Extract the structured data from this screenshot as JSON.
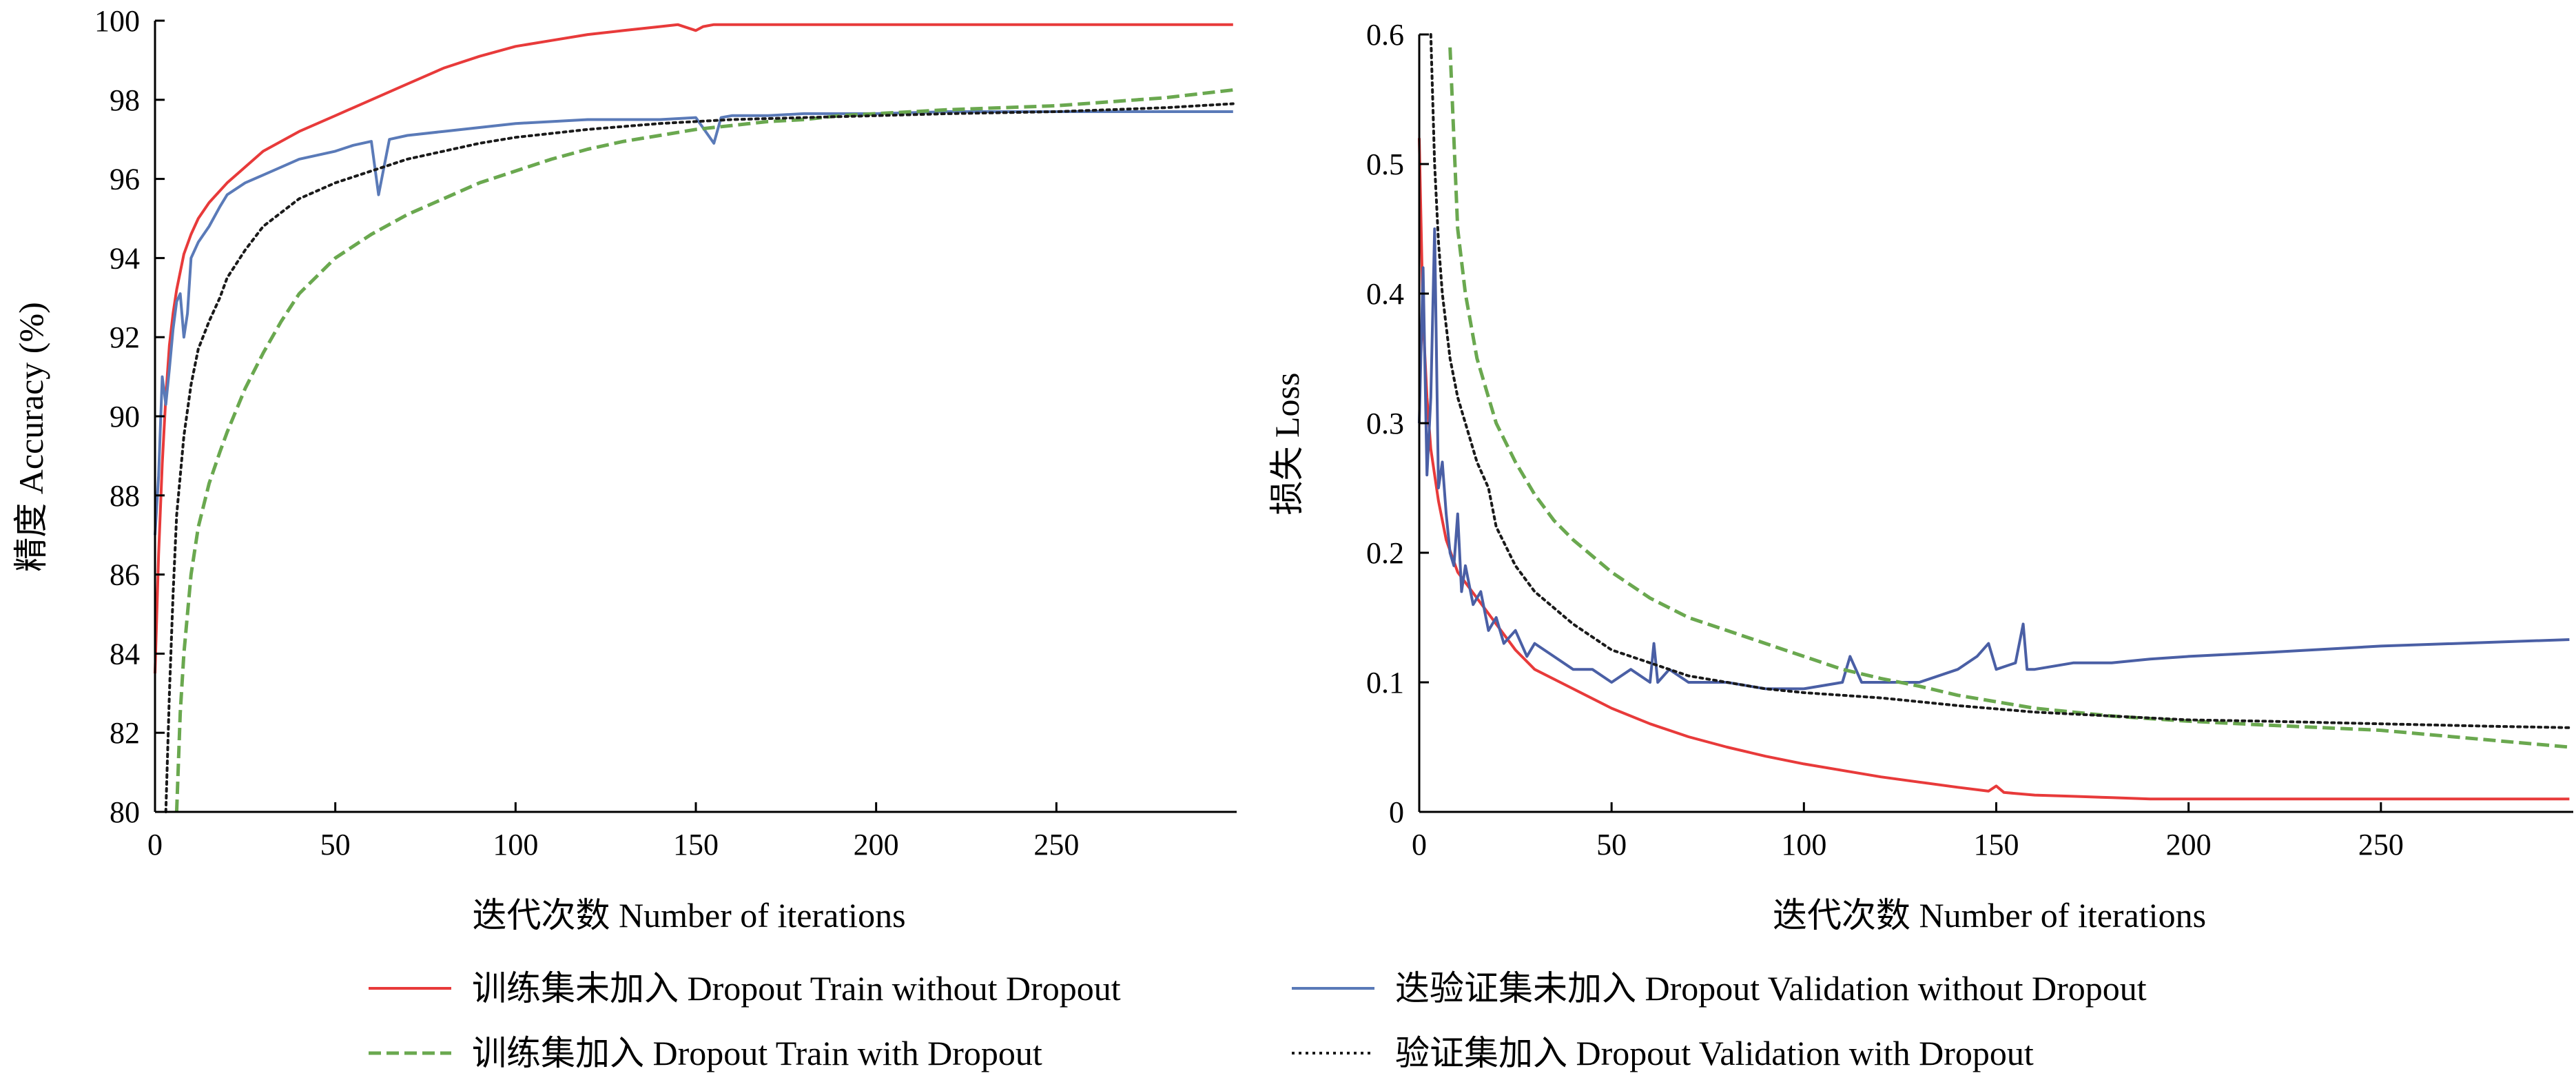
{
  "chart_data": [
    {
      "type": "line",
      "ylabel": "精度  Accuracy (%)",
      "xlabel": "迭代次数  Number of iterations",
      "xlim": [
        0,
        300
      ],
      "ylim": [
        80,
        100
      ],
      "xticks": [
        0,
        50,
        100,
        150,
        200,
        250
      ],
      "yticks": [
        80,
        82,
        84,
        86,
        88,
        90,
        92,
        94,
        96,
        98,
        100
      ],
      "grid": false,
      "series": [
        {
          "key": "train_no",
          "name": "训练集未加入  Dropout Train without Dropout",
          "color": "#e83a3a",
          "style": "solid",
          "x": [
            0,
            1,
            2,
            3,
            4,
            5,
            6,
            8,
            10,
            12,
            15,
            20,
            25,
            30,
            40,
            50,
            60,
            70,
            80,
            90,
            100,
            110,
            120,
            130,
            140,
            145,
            150,
            152,
            155,
            160,
            200,
            250,
            299
          ],
          "y": [
            83.5,
            86.5,
            88.8,
            90.5,
            91.8,
            92.6,
            93.2,
            94.1,
            94.6,
            95,
            95.4,
            95.9,
            96.3,
            96.7,
            97.2,
            97.6,
            98,
            98.4,
            98.8,
            99.1,
            99.35,
            99.5,
            99.65,
            99.75,
            99.85,
            99.9,
            99.75,
            99.85,
            99.9,
            99.9,
            99.9,
            99.9,
            99.9
          ]
        },
        {
          "key": "val_no",
          "name": "迭验证集未加入  Dropout Validation without Dropout",
          "color": "#5a7ab8",
          "style": "solid",
          "x": [
            0,
            1,
            2,
            3,
            4,
            5,
            6,
            7,
            8,
            9,
            10,
            12,
            15,
            18,
            20,
            25,
            30,
            35,
            40,
            45,
            50,
            55,
            60,
            62,
            65,
            70,
            80,
            90,
            100,
            110,
            120,
            130,
            140,
            150,
            155,
            157,
            160,
            170,
            180,
            200,
            220,
            250,
            299
          ],
          "y": [
            87,
            88.5,
            91,
            90.3,
            91.2,
            92.2,
            92.9,
            93.1,
            92,
            92.6,
            94,
            94.4,
            94.8,
            95.3,
            95.6,
            95.9,
            96.1,
            96.3,
            96.5,
            96.6,
            96.7,
            96.85,
            96.95,
            95.6,
            97,
            97.1,
            97.2,
            97.3,
            97.4,
            97.45,
            97.5,
            97.5,
            97.5,
            97.55,
            96.9,
            97.55,
            97.6,
            97.6,
            97.65,
            97.65,
            97.7,
            97.7,
            97.7
          ]
        },
        {
          "key": "train_do",
          "name": "训练集加入  Dropout Train with Dropout",
          "color": "#6aa84f",
          "style": "dashed",
          "x": [
            6,
            7,
            8,
            10,
            12,
            15,
            18,
            20,
            25,
            30,
            35,
            40,
            50,
            60,
            70,
            80,
            90,
            100,
            110,
            120,
            130,
            140,
            150,
            160,
            170,
            180,
            190,
            200,
            220,
            250,
            280,
            299
          ],
          "y": [
            80,
            82.5,
            84,
            86,
            87.2,
            88.3,
            89.1,
            89.6,
            90.7,
            91.6,
            92.4,
            93.1,
            94,
            94.6,
            95.1,
            95.5,
            95.9,
            96.2,
            96.5,
            96.75,
            96.95,
            97.1,
            97.25,
            97.35,
            97.45,
            97.5,
            97.6,
            97.65,
            97.75,
            97.85,
            98.05,
            98.25
          ]
        },
        {
          "key": "val_do",
          "name": "验证集加入  Dropout Validation with Dropout",
          "color": "#1a1a1a",
          "style": "dotted",
          "x": [
            3,
            4,
            5,
            6,
            8,
            10,
            12,
            15,
            18,
            20,
            25,
            30,
            40,
            50,
            60,
            70,
            80,
            90,
            100,
            120,
            140,
            160,
            180,
            200,
            220,
            250,
            280,
            299
          ],
          "y": [
            80,
            83,
            85.5,
            87.5,
            89.5,
            90.8,
            91.7,
            92.4,
            93,
            93.5,
            94.2,
            94.8,
            95.5,
            95.9,
            96.2,
            96.5,
            96.7,
            96.9,
            97.05,
            97.25,
            97.4,
            97.5,
            97.55,
            97.6,
            97.65,
            97.7,
            97.8,
            97.9
          ]
        }
      ]
    },
    {
      "type": "line",
      "ylabel": "损失  Loss",
      "xlabel": "迭代次数  Number of iterations",
      "xlim": [
        0,
        300
      ],
      "ylim": [
        0,
        0.6
      ],
      "xticks": [
        0,
        50,
        100,
        150,
        200,
        250
      ],
      "yticks": [
        0,
        0.1,
        0.2,
        0.3,
        0.4,
        0.5,
        0.6
      ],
      "ytick_labels": [
        "0",
        "0.1",
        "0.2",
        "0.3",
        "0.4",
        "0.5",
        "0.6"
      ],
      "grid": false,
      "series": [
        {
          "key": "train_no",
          "name": "训练集未加入  Dropout Train without Dropout",
          "color": "#e83a3a",
          "style": "solid",
          "x": [
            0,
            1,
            2,
            3,
            5,
            7,
            10,
            15,
            20,
            25,
            30,
            40,
            50,
            60,
            70,
            80,
            90,
            100,
            110,
            120,
            130,
            140,
            148,
            150,
            152,
            160,
            170,
            180,
            190,
            200,
            250,
            299
          ],
          "y": [
            0.52,
            0.38,
            0.32,
            0.28,
            0.24,
            0.21,
            0.185,
            0.165,
            0.145,
            0.125,
            0.11,
            0.095,
            0.08,
            0.068,
            0.058,
            0.05,
            0.043,
            0.037,
            0.032,
            0.027,
            0.023,
            0.019,
            0.016,
            0.02,
            0.015,
            0.013,
            0.012,
            0.011,
            0.01,
            0.01,
            0.01,
            0.01
          ]
        },
        {
          "key": "val_no",
          "name": "迭验证集未加入  Dropout Validation without Dropout",
          "color": "#4a5fa5",
          "style": "solid",
          "x": [
            0,
            1,
            2,
            3,
            4,
            5,
            6,
            7,
            8,
            9,
            10,
            11,
            12,
            14,
            16,
            18,
            20,
            22,
            25,
            28,
            30,
            35,
            40,
            45,
            50,
            55,
            60,
            61,
            62,
            65,
            70,
            80,
            90,
            100,
            110,
            112,
            115,
            120,
            130,
            140,
            145,
            148,
            150,
            155,
            157,
            158,
            160,
            170,
            180,
            190,
            200,
            220,
            250,
            299
          ],
          "y": [
            0.3,
            0.42,
            0.26,
            0.32,
            0.45,
            0.25,
            0.27,
            0.23,
            0.2,
            0.19,
            0.23,
            0.17,
            0.19,
            0.16,
            0.17,
            0.14,
            0.15,
            0.13,
            0.14,
            0.12,
            0.13,
            0.12,
            0.11,
            0.11,
            0.1,
            0.11,
            0.1,
            0.13,
            0.1,
            0.11,
            0.1,
            0.1,
            0.095,
            0.095,
            0.1,
            0.12,
            0.1,
            0.1,
            0.1,
            0.11,
            0.12,
            0.13,
            0.11,
            0.115,
            0.145,
            0.11,
            0.11,
            0.115,
            0.115,
            0.118,
            0.12,
            0.123,
            0.128,
            0.133
          ]
        },
        {
          "key": "train_do",
          "name": "训练集加入  Dropout Train with Dropout",
          "color": "#6aa84f",
          "style": "dashed",
          "x": [
            8,
            10,
            12,
            15,
            18,
            20,
            25,
            30,
            35,
            40,
            50,
            60,
            70,
            80,
            90,
            100,
            110,
            120,
            130,
            140,
            150,
            160,
            170,
            180,
            200,
            220,
            250,
            280,
            299
          ],
          "y": [
            0.59,
            0.45,
            0.4,
            0.35,
            0.32,
            0.3,
            0.27,
            0.245,
            0.225,
            0.21,
            0.185,
            0.165,
            0.15,
            0.14,
            0.13,
            0.12,
            0.11,
            0.103,
            0.097,
            0.09,
            0.085,
            0.08,
            0.077,
            0.074,
            0.07,
            0.067,
            0.063,
            0.055,
            0.05
          ]
        },
        {
          "key": "val_do",
          "name": "验证集加入  Dropout Validation with Dropout",
          "color": "#1a1a1a",
          "style": "dotted",
          "x": [
            3,
            4,
            5,
            6,
            8,
            10,
            12,
            15,
            18,
            20,
            25,
            30,
            40,
            50,
            60,
            70,
            80,
            90,
            100,
            110,
            120,
            140,
            160,
            180,
            200,
            220,
            250,
            280,
            299
          ],
          "y": [
            0.6,
            0.5,
            0.44,
            0.4,
            0.35,
            0.32,
            0.3,
            0.27,
            0.25,
            0.22,
            0.19,
            0.17,
            0.145,
            0.125,
            0.115,
            0.105,
            0.1,
            0.095,
            0.092,
            0.09,
            0.088,
            0.082,
            0.077,
            0.074,
            0.071,
            0.07,
            0.068,
            0.066,
            0.065
          ]
        }
      ]
    }
  ],
  "legend": {
    "items": [
      {
        "key": "train_no",
        "label": "训练集未加入  Dropout Train without Dropout"
      },
      {
        "key": "val_no",
        "label": "迭验证集未加入  Dropout Validation without Dropout"
      },
      {
        "key": "train_do",
        "label": "训练集加入  Dropout Train with Dropout"
      },
      {
        "key": "val_do",
        "label": "验证集加入  Dropout Validation with Dropout"
      }
    ]
  }
}
